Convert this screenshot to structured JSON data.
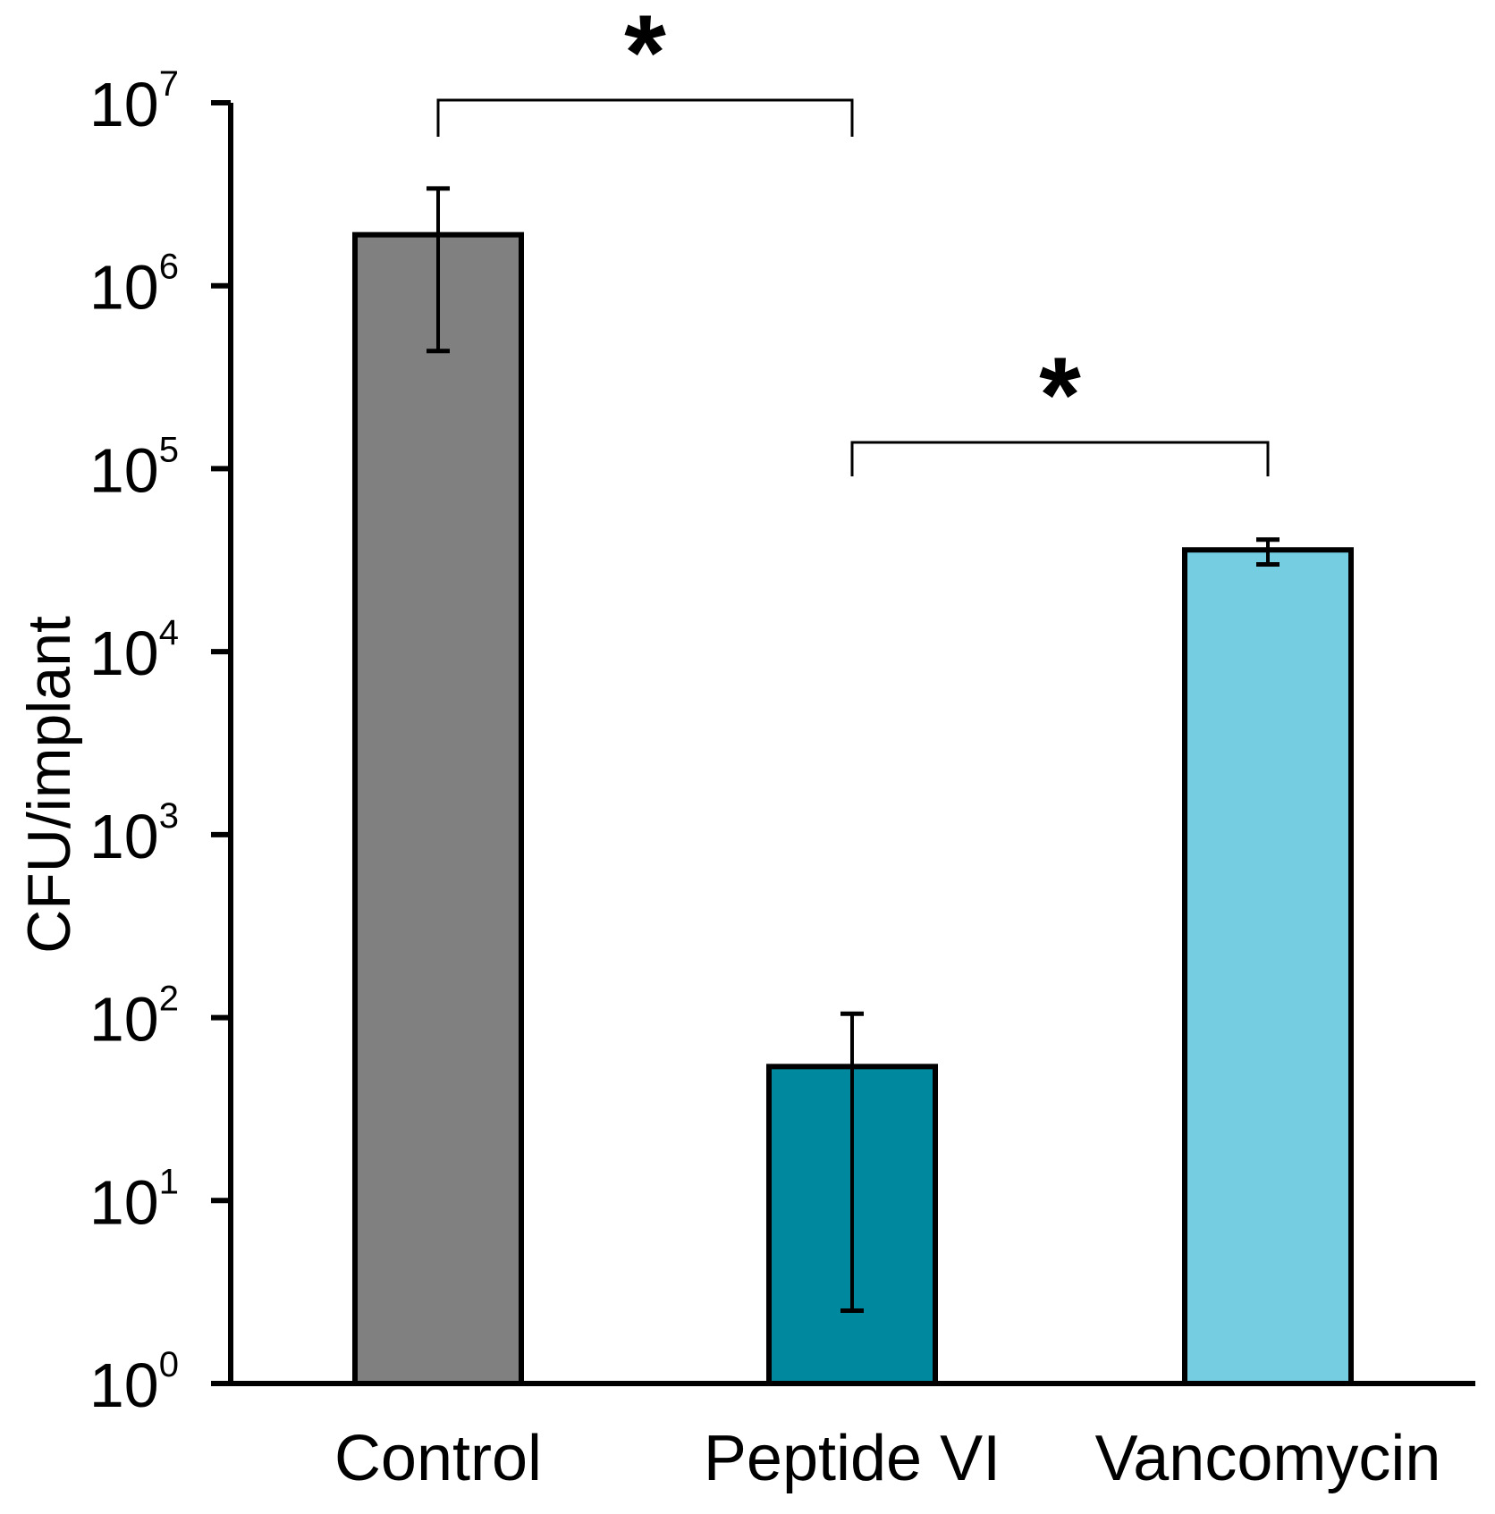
{
  "chart_data": {
    "type": "bar",
    "title": "",
    "xlabel": "",
    "ylabel": "CFU/implant",
    "yscale": "log",
    "ylim": [
      1,
      10000000
    ],
    "yticks": [
      {
        "base": "10",
        "exp": "0"
      },
      {
        "base": "10",
        "exp": "1"
      },
      {
        "base": "10",
        "exp": "2"
      },
      {
        "base": "10",
        "exp": "3"
      },
      {
        "base": "10",
        "exp": "4"
      },
      {
        "base": "10",
        "exp": "5"
      },
      {
        "base": "10",
        "exp": "6"
      },
      {
        "base": "10",
        "exp": "7"
      }
    ],
    "categories": [
      "Control",
      "Peptide VI",
      "Vancomycin"
    ],
    "values": [
      1900000,
      54,
      36000
    ],
    "error_low": [
      440000,
      2.5,
      30000
    ],
    "error_high": [
      3400000,
      105,
      41000
    ],
    "colors": [
      "#808080",
      "#00889e",
      "#74cde0"
    ],
    "significance": [
      {
        "from": "Control",
        "to": "Peptide VI",
        "label": "*"
      },
      {
        "from": "Peptide VI",
        "to": "Vancomycin",
        "label": "*"
      }
    ]
  }
}
